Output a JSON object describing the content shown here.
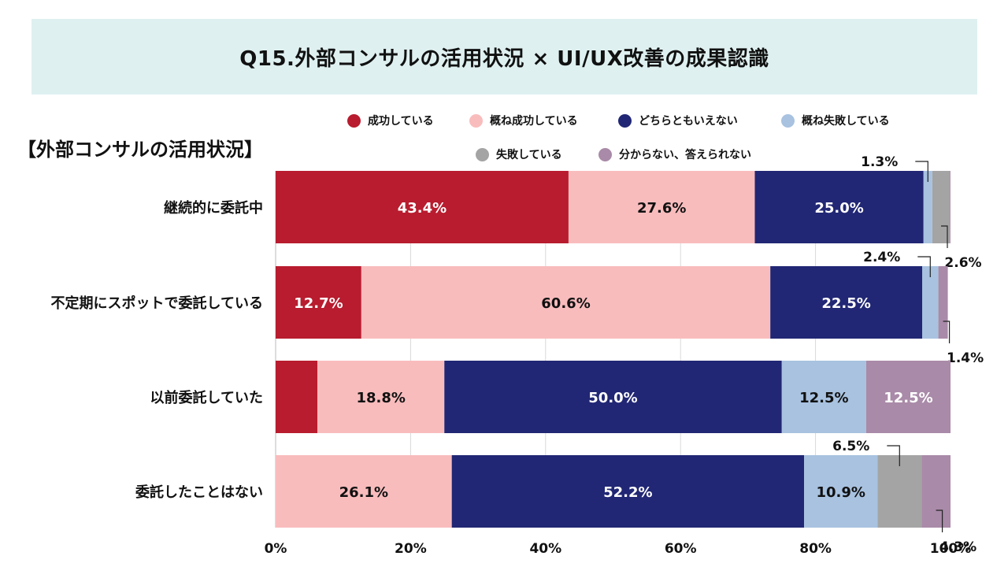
{
  "title": "Q15.外部コンサルの活用状況 × UI/UX改善の成果認識",
  "section_label": "【外部コンサルの活用状況】",
  "legend": [
    {
      "label": "成功している",
      "color": "#b81c2e"
    },
    {
      "label": "概ね成功している",
      "color": "#f9bcbd"
    },
    {
      "label": "どちらともいえない",
      "color": "#212774"
    },
    {
      "label": "概ね失敗している",
      "color": "#a8c2e0"
    },
    {
      "label": "失敗している",
      "color": "#a4a4a4"
    },
    {
      "label": "分からない、答えられない",
      "color": "#a98aa8"
    }
  ],
  "chart_data": {
    "type": "bar",
    "orientation": "horizontal",
    "stacked": true,
    "title": "Q15.外部コンサルの活用状況 × UI/UX改善の成果認識",
    "xlabel": "",
    "ylabel": "【外部コンサルの活用状況】",
    "xlim": [
      0,
      100
    ],
    "x_tick_labels": [
      "0%",
      "20%",
      "40%",
      "60%",
      "80%",
      "100%"
    ],
    "grid": true,
    "legend_position": "top",
    "categories": [
      "継続的に委託中",
      "不定期にスポットで委託している",
      "以前委託していた",
      "委託したことはない"
    ],
    "series": [
      {
        "name": "成功している",
        "values": [
          43.4,
          12.7,
          6.2,
          0
        ]
      },
      {
        "name": "概ね成功している",
        "values": [
          27.6,
          60.6,
          18.8,
          26.1
        ]
      },
      {
        "name": "どちらともいえない",
        "values": [
          25.0,
          22.5,
          50.0,
          52.2
        ]
      },
      {
        "name": "概ね失敗している",
        "values": [
          1.3,
          2.4,
          12.5,
          10.9
        ]
      },
      {
        "name": "失敗している",
        "values": [
          2.6,
          0,
          0,
          6.5
        ]
      },
      {
        "name": "分からない、答えられない",
        "values": [
          0.1,
          1.4,
          12.5,
          4.3
        ]
      }
    ],
    "data_labels": [
      [
        "43.4%",
        "27.6%",
        "25.0%",
        "1.3%",
        "2.6%",
        ""
      ],
      [
        "12.7%",
        "60.6%",
        "22.5%",
        "2.4%",
        "",
        "1.4%"
      ],
      [
        "",
        "18.8%",
        "50.0%",
        "12.5%",
        "",
        "12.5%"
      ],
      [
        "",
        "26.1%",
        "52.2%",
        "10.9%",
        "6.5%",
        "4.3%"
      ]
    ]
  }
}
